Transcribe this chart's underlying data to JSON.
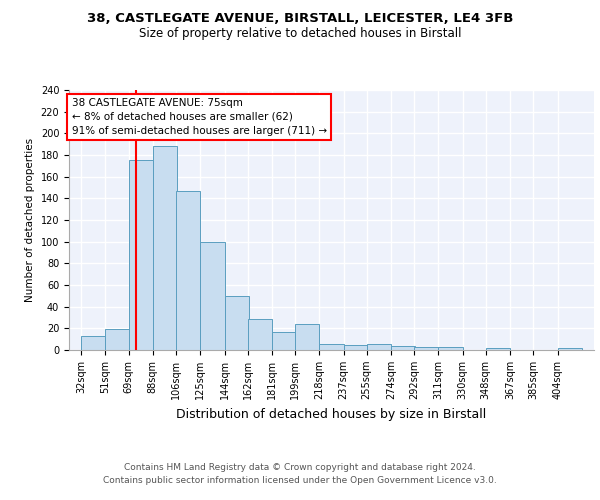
{
  "title1": "38, CASTLEGATE AVENUE, BIRSTALL, LEICESTER, LE4 3FB",
  "title2": "Size of property relative to detached houses in Birstall",
  "xlabel": "Distribution of detached houses by size in Birstall",
  "ylabel": "Number of detached properties",
  "bins": [
    32,
    51,
    69,
    88,
    106,
    125,
    144,
    162,
    181,
    199,
    218,
    237,
    255,
    274,
    292,
    311,
    330,
    348,
    367,
    385,
    404
  ],
  "values": [
    13,
    19,
    175,
    188,
    147,
    100,
    50,
    29,
    17,
    24,
    6,
    5,
    6,
    4,
    3,
    3,
    0,
    2,
    0,
    0,
    2
  ],
  "bar_color": "#c8ddf0",
  "bar_edge_color": "#5a9ec0",
  "red_line_x": 75,
  "annotation_line1": "38 CASTLEGATE AVENUE: 75sqm",
  "annotation_line2": "← 8% of detached houses are smaller (62)",
  "annotation_line3": "91% of semi-detached houses are larger (711) →",
  "annotation_box_color": "white",
  "annotation_box_edge": "red",
  "footer1": "Contains HM Land Registry data © Crown copyright and database right 2024.",
  "footer2": "Contains public sector information licensed under the Open Government Licence v3.0.",
  "ylim": [
    0,
    240
  ],
  "yticks": [
    0,
    20,
    40,
    60,
    80,
    100,
    120,
    140,
    160,
    180,
    200,
    220,
    240
  ],
  "background_color": "#eef2fb",
  "grid_color": "white",
  "title1_fontsize": 9.5,
  "title2_fontsize": 8.5,
  "xlabel_fontsize": 9,
  "ylabel_fontsize": 7.5,
  "tick_fontsize": 7,
  "annotation_fontsize": 7.5,
  "footer_fontsize": 6.5
}
